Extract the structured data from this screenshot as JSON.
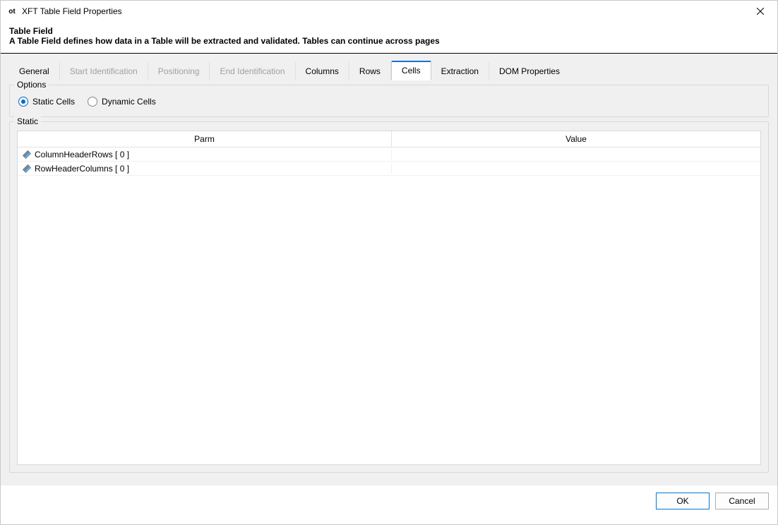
{
  "window": {
    "icon_label": "ot",
    "title": "XFT Table Field Properties",
    "close_icon": "close"
  },
  "header": {
    "heading": "Table Field",
    "subheading": "A Table Field defines how data in a Table will be extracted and validated. Tables can continue across pages"
  },
  "tabs": [
    {
      "label": "General",
      "state": "enabled"
    },
    {
      "label": "Start Identification",
      "state": "disabled"
    },
    {
      "label": "Positioning",
      "state": "disabled"
    },
    {
      "label": "End Identification",
      "state": "disabled"
    },
    {
      "label": "Columns",
      "state": "enabled"
    },
    {
      "label": "Rows",
      "state": "enabled"
    },
    {
      "label": "Cells",
      "state": "selected"
    },
    {
      "label": "Extraction",
      "state": "enabled"
    },
    {
      "label": "DOM Properties",
      "state": "enabled"
    }
  ],
  "options": {
    "legend": "Options",
    "radios": [
      {
        "label": "Static Cells",
        "selected": true
      },
      {
        "label": "Dynamic Cells",
        "selected": false
      }
    ]
  },
  "static_group": {
    "legend": "Static",
    "columns": [
      {
        "label": "Parm",
        "key": "parm"
      },
      {
        "label": "Value",
        "key": "value"
      }
    ],
    "rows": [
      {
        "parm": "ColumnHeaderRows [ 0 ]",
        "value": ""
      },
      {
        "parm": "RowHeaderColumns [ 0 ]",
        "value": ""
      }
    ]
  },
  "footer": {
    "ok_label": "OK",
    "cancel_label": "Cancel"
  },
  "colors": {
    "accent": "#0078d7",
    "tab_highlight": "#1a6fd6",
    "body_bg": "#f0f0f0",
    "border": "#d8d8d8",
    "disabled_text": "#a0a0a0",
    "text": "#000000",
    "white": "#ffffff"
  }
}
